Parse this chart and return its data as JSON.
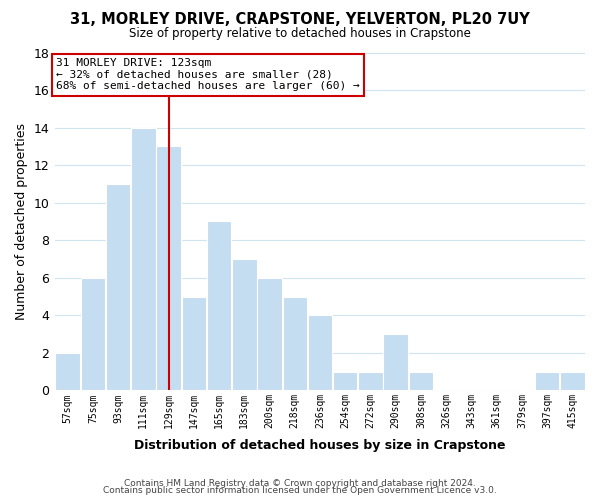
{
  "title": "31, MORLEY DRIVE, CRAPSTONE, YELVERTON, PL20 7UY",
  "subtitle": "Size of property relative to detached houses in Crapstone",
  "xlabel": "Distribution of detached houses by size in Crapstone",
  "ylabel": "Number of detached properties",
  "categories": [
    "57sqm",
    "75sqm",
    "93sqm",
    "111sqm",
    "129sqm",
    "147sqm",
    "165sqm",
    "183sqm",
    "200sqm",
    "218sqm",
    "236sqm",
    "254sqm",
    "272sqm",
    "290sqm",
    "308sqm",
    "326sqm",
    "343sqm",
    "361sqm",
    "379sqm",
    "397sqm",
    "415sqm"
  ],
  "values": [
    2,
    6,
    11,
    14,
    13,
    5,
    9,
    7,
    6,
    5,
    4,
    1,
    1,
    3,
    1,
    0,
    0,
    0,
    0,
    1,
    1
  ],
  "bar_color": "#c5ddf0",
  "bar_edge_color": "#ffffff",
  "vline_x_index": 4,
  "vline_color": "#cc0000",
  "annotation_title": "31 MORLEY DRIVE: 123sqm",
  "annotation_line1": "← 32% of detached houses are smaller (28)",
  "annotation_line2": "68% of semi-detached houses are larger (60) →",
  "annotation_box_edgecolor": "#cc0000",
  "ylim": [
    0,
    18
  ],
  "yticks": [
    0,
    2,
    4,
    6,
    8,
    10,
    12,
    14,
    16,
    18
  ],
  "background_color": "#ffffff",
  "grid_color": "#d0e4f0",
  "footer1": "Contains HM Land Registry data © Crown copyright and database right 2024.",
  "footer2": "Contains public sector information licensed under the Open Government Licence v3.0."
}
